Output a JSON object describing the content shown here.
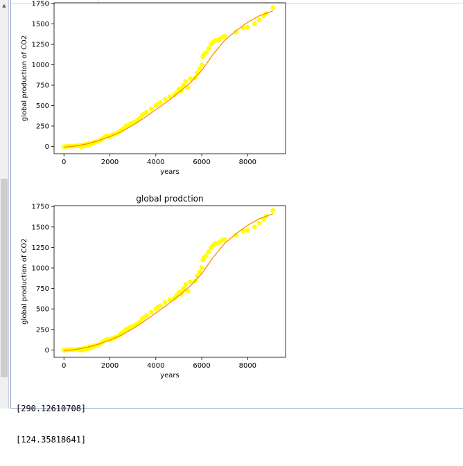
{
  "scrollbar": {
    "up_glyph": "▲"
  },
  "console": {
    "lines": [
      "[290.12610708]",
      "[124.35818641]"
    ]
  },
  "chart_data": [
    {
      "type": "scatter",
      "title": "",
      "xlabel": "years",
      "ylabel": "global production of CO2",
      "xlim": [
        -430,
        9650
      ],
      "ylim": [
        -90,
        1760
      ],
      "xticks": [
        0,
        2000,
        4000,
        6000,
        8000
      ],
      "yticks": [
        0,
        250,
        500,
        750,
        1000,
        1250,
        1500,
        1750
      ],
      "colors": {
        "points": "#ffff00",
        "fit": "#ff8c00"
      },
      "series": [
        {
          "kind": "points",
          "x": [
            0,
            100,
            200,
            300,
            400,
            500,
            600,
            700,
            750,
            800,
            850,
            900,
            950,
            1000,
            1050,
            1100,
            1150,
            1200,
            1250,
            1300,
            1400,
            1500,
            1600,
            1700,
            1800,
            1900,
            2000,
            2100,
            2200,
            2300,
            2400,
            2500,
            2600,
            2700,
            2800,
            2900,
            3000,
            3100,
            3200,
            3300,
            3400,
            3500,
            3600,
            3800,
            4000,
            4100,
            4200,
            4400,
            4600,
            4800,
            4900,
            5000,
            5100,
            5150,
            5200,
            5300,
            5400,
            5500,
            5700,
            5800,
            5900,
            6000,
            6050,
            6100,
            6200,
            6300,
            6400,
            6500,
            6600,
            6700,
            6800,
            6900,
            7000,
            7500,
            7800,
            8000,
            8300,
            8500,
            8700,
            8800,
            9100
          ],
          "y": [
            -5,
            0,
            3,
            5,
            2,
            8,
            5,
            10,
            -3,
            15,
            5,
            25,
            10,
            20,
            15,
            40,
            25,
            30,
            35,
            50,
            55,
            60,
            80,
            100,
            120,
            130,
            120,
            140,
            150,
            160,
            180,
            200,
            220,
            250,
            260,
            280,
            290,
            300,
            320,
            340,
            380,
            400,
            420,
            460,
            500,
            520,
            540,
            580,
            610,
            630,
            660,
            700,
            680,
            720,
            750,
            800,
            720,
            830,
            840,
            900,
            950,
            1000,
            1100,
            1130,
            1150,
            1200,
            1250,
            1280,
            1300,
            1300,
            1320,
            1340,
            1350,
            1400,
            1450,
            1460,
            1500,
            1550,
            1600,
            1630,
            1700
          ]
        },
        {
          "kind": "fit",
          "x": [
            0,
            500,
            1000,
            1500,
            2000,
            2500,
            3000,
            3500,
            4000,
            4500,
            5000,
            5500,
            6000,
            6500,
            7000,
            7500,
            8000,
            8500,
            9000,
            9100
          ],
          "y": [
            -10,
            5,
            30,
            70,
            120,
            180,
            260,
            350,
            450,
            550,
            660,
            780,
            930,
            1130,
            1300,
            1420,
            1520,
            1600,
            1650,
            1660
          ]
        }
      ]
    },
    {
      "type": "scatter",
      "title": "global prodction",
      "xlabel": "years",
      "ylabel": "global production of CO2",
      "xlim": [
        -430,
        9650
      ],
      "ylim": [
        -90,
        1760
      ],
      "xticks": [
        0,
        2000,
        4000,
        6000,
        8000
      ],
      "yticks": [
        0,
        250,
        500,
        750,
        1000,
        1250,
        1500,
        1750
      ],
      "colors": {
        "points": "#ffff00",
        "fit": "#ff8c00"
      },
      "series": [
        {
          "kind": "points",
          "x": [
            0,
            100,
            200,
            300,
            400,
            500,
            600,
            700,
            750,
            800,
            850,
            900,
            950,
            1000,
            1050,
            1100,
            1150,
            1200,
            1250,
            1300,
            1400,
            1500,
            1600,
            1700,
            1800,
            1900,
            2000,
            2100,
            2200,
            2300,
            2400,
            2500,
            2600,
            2700,
            2800,
            2900,
            3000,
            3100,
            3200,
            3300,
            3400,
            3500,
            3600,
            3800,
            4000,
            4100,
            4200,
            4400,
            4600,
            4800,
            4900,
            5000,
            5100,
            5150,
            5200,
            5300,
            5400,
            5500,
            5700,
            5800,
            5900,
            6000,
            6050,
            6100,
            6200,
            6300,
            6400,
            6500,
            6600,
            6700,
            6800,
            6900,
            7000,
            7500,
            7800,
            8000,
            8300,
            8500,
            8700,
            8800,
            9100
          ],
          "y": [
            -5,
            0,
            3,
            5,
            2,
            8,
            5,
            10,
            -3,
            15,
            5,
            25,
            10,
            20,
            15,
            40,
            25,
            30,
            35,
            50,
            55,
            60,
            80,
            100,
            120,
            130,
            120,
            140,
            150,
            160,
            180,
            200,
            220,
            250,
            260,
            280,
            290,
            300,
            320,
            340,
            380,
            400,
            420,
            460,
            500,
            520,
            540,
            580,
            610,
            630,
            660,
            700,
            680,
            720,
            750,
            800,
            720,
            830,
            840,
            900,
            950,
            1000,
            1100,
            1130,
            1150,
            1200,
            1250,
            1280,
            1300,
            1300,
            1320,
            1340,
            1350,
            1400,
            1450,
            1460,
            1500,
            1550,
            1600,
            1630,
            1700
          ]
        },
        {
          "kind": "fit",
          "x": [
            0,
            500,
            1000,
            1500,
            2000,
            2500,
            3000,
            3500,
            4000,
            4500,
            5000,
            5500,
            6000,
            6500,
            7000,
            7500,
            8000,
            8500,
            9000,
            9100
          ],
          "y": [
            -10,
            5,
            30,
            70,
            120,
            180,
            260,
            350,
            450,
            550,
            660,
            780,
            930,
            1130,
            1300,
            1420,
            1520,
            1600,
            1650,
            1660
          ]
        }
      ]
    }
  ]
}
